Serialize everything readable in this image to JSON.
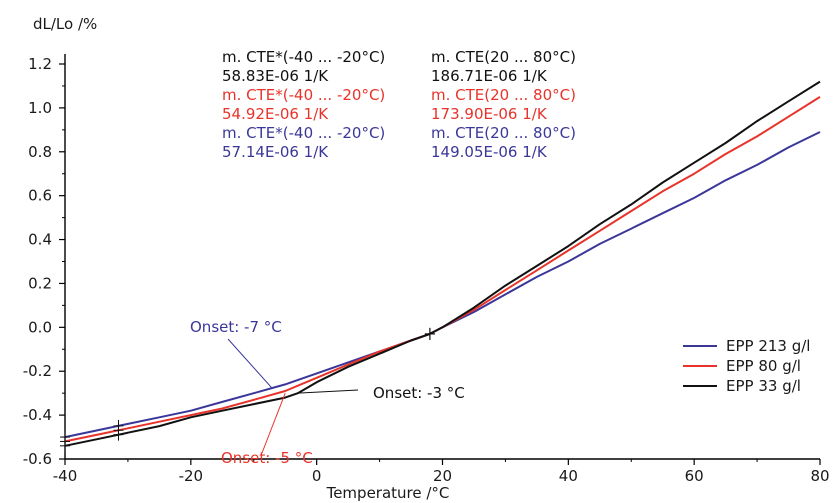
{
  "chart_data": {
    "type": "line",
    "ylabel": "dL/Lo /%",
    "xlabel": "Temperature /°C",
    "xlim": [
      -40,
      80
    ],
    "ylim": [
      -0.6,
      1.2
    ],
    "x_ticks": [
      -40,
      -20,
      0,
      20,
      40,
      60,
      80
    ],
    "y_ticks": [
      1.2,
      1.0,
      0.8,
      0.6,
      0.4,
      0.2,
      0.0,
      -0.2,
      -0.4,
      -0.6
    ],
    "x_tick_labels": [
      "-40",
      "-20",
      "0",
      "20",
      "40",
      "60",
      "80"
    ],
    "y_tick_labels": [
      "1.2",
      "1.0",
      "0.8",
      "0.6",
      "0.4",
      "0.2",
      "0.0",
      "-0.2",
      "-0.4",
      "-0.6"
    ],
    "grid": false,
    "legend_position": "bottom-right",
    "series": [
      {
        "name": "EPP 213 g/l",
        "color": "#3b3799",
        "points": [
          [
            -40,
            -0.5
          ],
          [
            -35,
            -0.47
          ],
          [
            -30,
            -0.44
          ],
          [
            -25,
            -0.41
          ],
          [
            -20,
            -0.38
          ],
          [
            -15,
            -0.34
          ],
          [
            -10,
            -0.3
          ],
          [
            -5,
            -0.26
          ],
          [
            0,
            -0.21
          ],
          [
            5,
            -0.16
          ],
          [
            10,
            -0.11
          ],
          [
            15,
            -0.06
          ],
          [
            18,
            -0.03
          ],
          [
            20,
            0.0
          ],
          [
            25,
            0.07
          ],
          [
            30,
            0.15
          ],
          [
            35,
            0.23
          ],
          [
            40,
            0.3
          ],
          [
            45,
            0.38
          ],
          [
            50,
            0.45
          ],
          [
            55,
            0.52
          ],
          [
            60,
            0.59
          ],
          [
            65,
            0.67
          ],
          [
            70,
            0.74
          ],
          [
            75,
            0.82
          ],
          [
            80,
            0.89
          ]
        ]
      },
      {
        "name": "EPP 80 g/l",
        "color": "#e8332a",
        "points": [
          [
            -40,
            -0.52
          ],
          [
            -35,
            -0.49
          ],
          [
            -30,
            -0.46
          ],
          [
            -25,
            -0.43
          ],
          [
            -20,
            -0.4
          ],
          [
            -15,
            -0.37
          ],
          [
            -10,
            -0.33
          ],
          [
            -5,
            -0.29
          ],
          [
            0,
            -0.23
          ],
          [
            5,
            -0.17
          ],
          [
            10,
            -0.11
          ],
          [
            15,
            -0.06
          ],
          [
            18,
            -0.03
          ],
          [
            20,
            0.0
          ],
          [
            25,
            0.08
          ],
          [
            30,
            0.17
          ],
          [
            35,
            0.26
          ],
          [
            40,
            0.35
          ],
          [
            45,
            0.44
          ],
          [
            50,
            0.53
          ],
          [
            55,
            0.62
          ],
          [
            60,
            0.7
          ],
          [
            65,
            0.79
          ],
          [
            70,
            0.87
          ],
          [
            75,
            0.96
          ],
          [
            80,
            1.05
          ]
        ]
      },
      {
        "name": "EPP 33 g/l",
        "color": "#111111",
        "points": [
          [
            -40,
            -0.54
          ],
          [
            -35,
            -0.51
          ],
          [
            -30,
            -0.48
          ],
          [
            -25,
            -0.45
          ],
          [
            -20,
            -0.41
          ],
          [
            -15,
            -0.38
          ],
          [
            -10,
            -0.35
          ],
          [
            -5,
            -0.32
          ],
          [
            -3,
            -0.3
          ],
          [
            0,
            -0.25
          ],
          [
            5,
            -0.18
          ],
          [
            10,
            -0.12
          ],
          [
            15,
            -0.06
          ],
          [
            18,
            -0.03
          ],
          [
            20,
            0.0
          ],
          [
            25,
            0.09
          ],
          [
            30,
            0.19
          ],
          [
            35,
            0.28
          ],
          [
            40,
            0.37
          ],
          [
            45,
            0.47
          ],
          [
            50,
            0.56
          ],
          [
            55,
            0.66
          ],
          [
            60,
            0.75
          ],
          [
            65,
            0.84
          ],
          [
            70,
            0.94
          ],
          [
            75,
            1.03
          ],
          [
            80,
            1.12
          ]
        ]
      }
    ],
    "cte_annotations": [
      {
        "color": "#111111",
        "low_label": "m. CTE*(-40 ... -20°C)",
        "low_value": "58.83E-06 1/K",
        "high_label": "m. CTE(20 ... 80°C)",
        "high_value": "186.71E-06 1/K"
      },
      {
        "color": "#e8332a",
        "low_label": "m. CTE*(-40 ... -20°C)",
        "low_value": "54.92E-06 1/K",
        "high_label": "m. CTE(20 ... 80°C)",
        "high_value": "173.90E-06 1/K"
      },
      {
        "color": "#3b3799",
        "low_label": "m. CTE*(-40 ... -20°C)",
        "low_value": "57.14E-06 1/K",
        "high_label": "m. CTE(20 ... 80°C)",
        "high_value": "149.05E-06 1/K"
      }
    ],
    "onset_annotations": [
      {
        "label": "Onset: -7 °C",
        "color": "#3b3799",
        "x": -7,
        "y": -0.28
      },
      {
        "label": "Onset: -5 °C",
        "color": "#e8332a",
        "x": -5,
        "y": -0.3
      },
      {
        "label": "Onset: -3 °C",
        "color": "#111111",
        "x": -3,
        "y": -0.3
      }
    ]
  }
}
